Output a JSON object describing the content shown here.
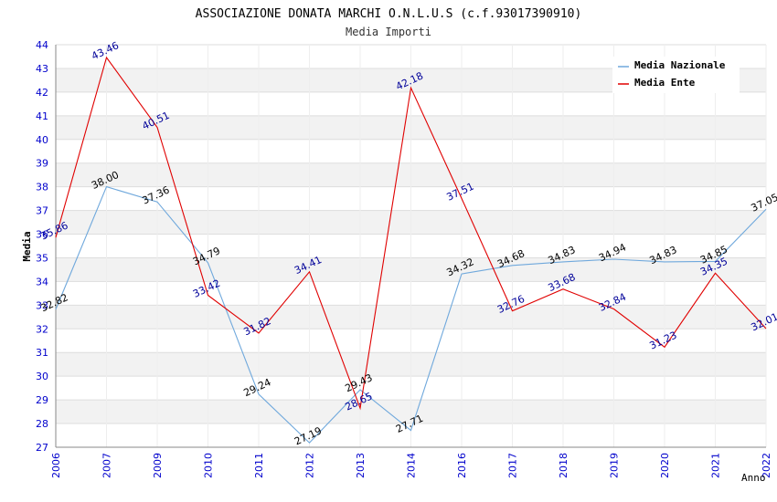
{
  "chart_data": {
    "type": "line",
    "title": "ASSOCIAZIONE DONATA MARCHI O.N.L.U.S (c.f.93017390910)",
    "subtitle": "Media Importi",
    "xlabel": "Anno",
    "ylabel": "Media",
    "categories": [
      "2006",
      "2007",
      "2009",
      "2010",
      "2011",
      "2012",
      "2013",
      "2014",
      "2016",
      "2017",
      "2018",
      "2019",
      "2020",
      "2021",
      "2022"
    ],
    "ylim": [
      27,
      44
    ],
    "yticks": [
      "27",
      "28",
      "29",
      "30",
      "31",
      "32",
      "33",
      "34",
      "35",
      "36",
      "37",
      "38",
      "39",
      "40",
      "41",
      "42",
      "43",
      "44"
    ],
    "grid": true,
    "legend_position": "top-right",
    "series": [
      {
        "name": "Media Nazionale",
        "color": "#6fa8dc",
        "label_color": "#000000",
        "values": [
          32.82,
          38.0,
          37.36,
          34.79,
          29.24,
          27.19,
          29.43,
          27.71,
          34.32,
          34.68,
          34.83,
          34.94,
          34.83,
          34.85,
          37.05
        ],
        "labels": [
          "32.82",
          "38.00",
          "37.36",
          "34.79",
          "29.24",
          "27.19",
          "29.43",
          "27.71",
          "34.32",
          "34.68",
          "34.83",
          "34.94",
          "34.83",
          "34.85",
          "37.05"
        ]
      },
      {
        "name": "Media Ente",
        "color": "#e00000",
        "label_color": "#000099",
        "values": [
          35.86,
          43.46,
          40.51,
          33.42,
          31.82,
          34.41,
          28.65,
          42.18,
          37.51,
          32.76,
          33.68,
          32.84,
          31.23,
          34.35,
          32.01
        ],
        "labels": [
          "35.86",
          "43.46",
          "40.51",
          "33.42",
          "31.82",
          "34.41",
          "28.65",
          "42.18",
          "37.51",
          "32.76",
          "33.68",
          "32.84",
          "31.23",
          "34.35",
          "32.01"
        ]
      }
    ],
    "colors": {
      "axis_tick_labels": "#0000cc",
      "band_fill": "#f2f2f2",
      "grid": "#dddddd"
    }
  }
}
